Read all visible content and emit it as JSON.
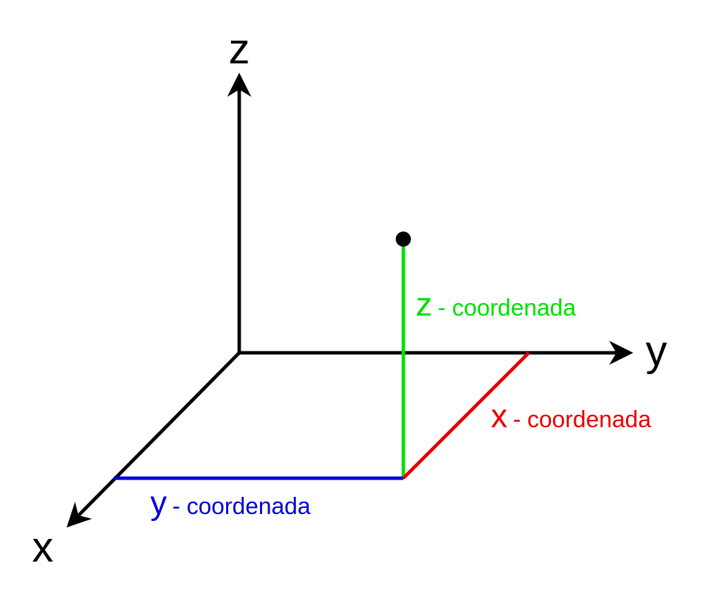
{
  "axes": {
    "z": "z",
    "y": "y",
    "x": "x"
  },
  "coordinates": [
    {
      "letter": "z",
      "text": "- coordenada"
    },
    {
      "letter": "x",
      "text": "- coordenada"
    },
    {
      "letter": "y",
      "text": "- coordenada"
    }
  ]
}
